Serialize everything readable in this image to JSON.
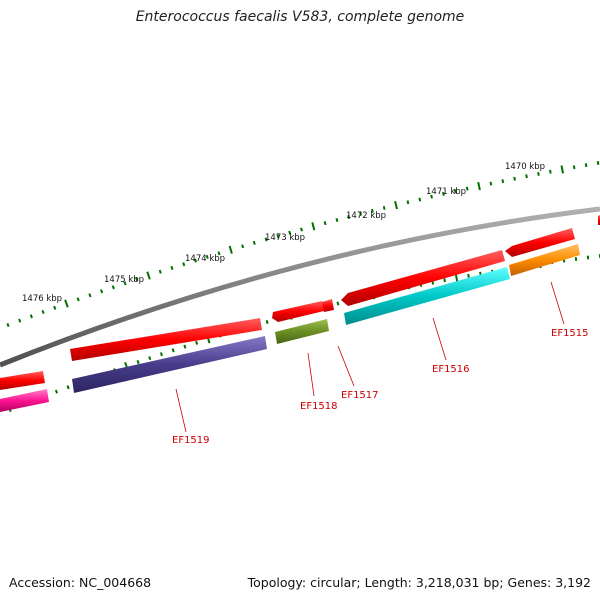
{
  "title": "Enterococcus faecalis V583, complete genome",
  "footer": {
    "accession": "Accession: NC_004668",
    "summary": "Topology: circular; Length: 3,218,031 bp; Genes: 3,192"
  },
  "scale": {
    "tick_labels": [
      "1470 kbp",
      "1471 kbp",
      "1472 kbp",
      "1473 kbp",
      "1474 kbp",
      "1475 kbp",
      "1476 kbp"
    ]
  },
  "genes": [
    {
      "name": "EF1515",
      "color": "#ff8c00"
    },
    {
      "name": "EF1516",
      "color": "#00c8c8"
    },
    {
      "name": "EF1517",
      "color": "#ff0000"
    },
    {
      "name": "EF1518",
      "color": "#6b8e23"
    },
    {
      "name": "EF1519",
      "color": "#483d8b"
    }
  ],
  "colors": {
    "cds": "#ff0000",
    "backbone": "#808080",
    "ticks": "#007000",
    "label": "#cc0000",
    "magenta": "#ff1493"
  }
}
